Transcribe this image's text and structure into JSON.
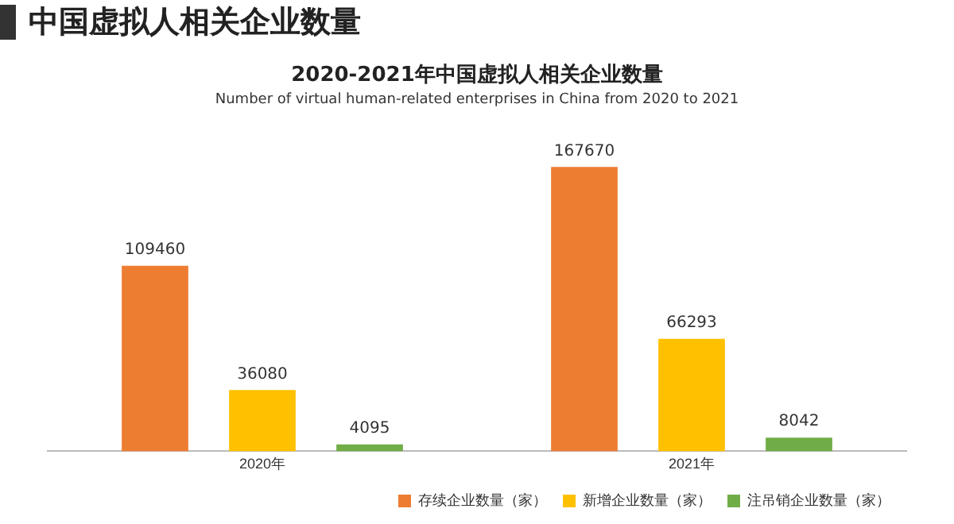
{
  "chart_data": {
    "type": "bar",
    "title": "2020-2021年中国虚拟人相关企业数量",
    "subtitle": "Number of virtual human-related enterprises in China from 2020 to 2021",
    "annotations": [
      "中国虚拟人相关企业数量"
    ],
    "categories": [
      "2020年",
      "2021年"
    ],
    "series": [
      {
        "name": "存续企业数量（家）",
        "color": "#ed7d31",
        "values": [
          109460,
          167670
        ]
      },
      {
        "name": "新增企业数量（家）",
        "color": "#ffc000",
        "values": [
          36080,
          66293
        ]
      },
      {
        "name": "注吊销企业数量（家）",
        "color": "#70ad47",
        "values": [
          4095,
          8042
        ]
      }
    ],
    "data_labels": true,
    "grid": false,
    "legend": "bottom"
  }
}
